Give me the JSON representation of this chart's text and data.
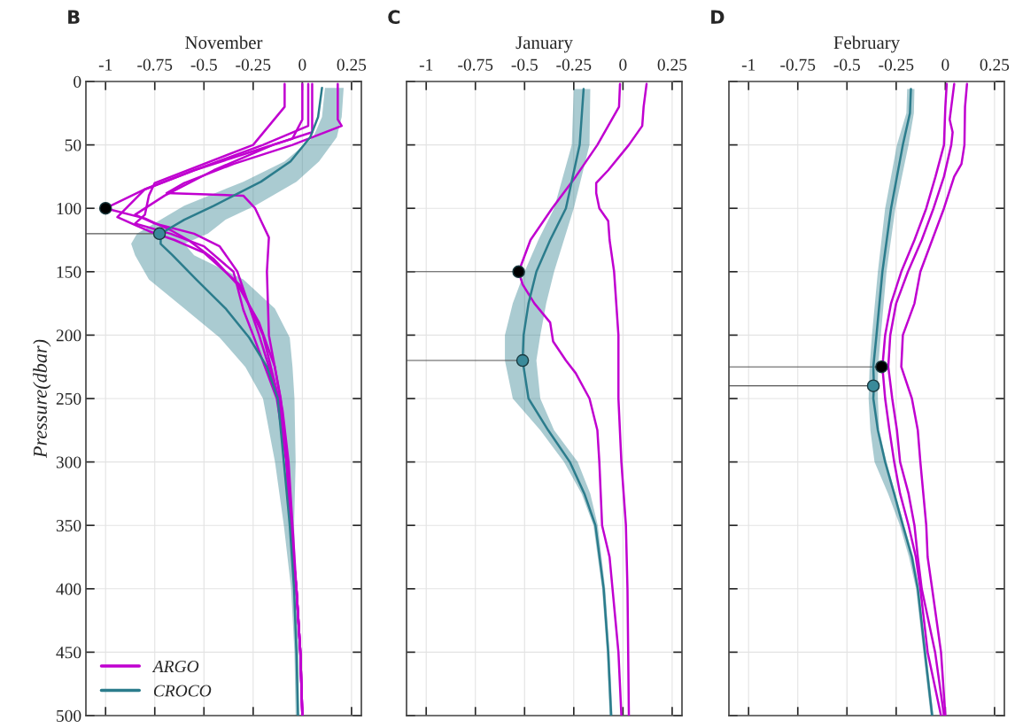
{
  "chart_data": [
    {
      "type": "line",
      "title": "November",
      "ylabel": "Pressure(dbar)",
      "annotations": [
        "B"
      ],
      "orientation": "horizontal",
      "xlim": [
        -1.1,
        0.3
      ],
      "xticks": [
        -1,
        -0.75,
        -0.5,
        -0.25,
        0,
        0.25
      ],
      "ylim": [
        500,
        0
      ],
      "yticks": [
        0,
        50,
        100,
        150,
        200,
        250,
        300,
        350,
        400,
        450,
        500
      ],
      "grid": true,
      "legend": "bottom left",
      "series": [
        {
          "name": "ARGO",
          "color": "#c000d0",
          "x": [
            2,
            30,
            45,
            55,
            70,
            85,
            100,
            108,
            118,
            125,
            140,
            160,
            190,
            225,
            260,
            300,
            350,
            400,
            450,
            500
          ],
          "values": [
            0.0,
            0.0,
            -0.05,
            -0.25,
            -0.55,
            -0.8,
            -1.0,
            -0.8,
            -0.66,
            -0.58,
            -0.45,
            -0.33,
            -0.22,
            -0.14,
            -0.1,
            -0.07,
            -0.05,
            -0.03,
            -0.01,
            0.0
          ]
        },
        {
          "color": "#c000d0",
          "x": [
            2,
            35,
            50,
            70,
            85,
            107,
            118,
            125,
            135,
            160,
            200,
            250,
            300,
            350,
            400,
            450,
            500
          ],
          "values": [
            0.03,
            0.03,
            -0.2,
            -0.55,
            -0.8,
            -0.94,
            -0.78,
            -0.65,
            -0.5,
            -0.32,
            -0.2,
            -0.12,
            -0.08,
            -0.06,
            -0.03,
            -0.01,
            0.0
          ]
        },
        {
          "color": "#c000d0",
          "x": [
            2,
            30,
            35,
            50,
            65,
            80,
            88,
            90,
            100,
            123,
            150,
            200,
            250,
            300,
            350,
            400,
            450,
            500
          ],
          "values": [
            0.18,
            0.18,
            0.2,
            -0.05,
            -0.35,
            -0.6,
            -0.69,
            -0.3,
            -0.24,
            -0.17,
            -0.18,
            -0.17,
            -0.11,
            -0.08,
            -0.06,
            -0.03,
            -0.01,
            0.0
          ]
        },
        {
          "color": "#c000d0",
          "x": [
            2,
            20,
            50,
            80,
            90,
            105,
            112,
            120,
            130,
            150,
            180,
            200,
            250,
            300,
            350,
            400,
            450,
            500
          ],
          "values": [
            -0.09,
            -0.09,
            -0.25,
            -0.75,
            -0.78,
            -0.8,
            -0.85,
            -0.67,
            -0.5,
            -0.35,
            -0.3,
            -0.25,
            -0.13,
            -0.08,
            -0.06,
            -0.03,
            -0.01,
            0.0
          ]
        },
        {
          "color": "#c000d0",
          "x": [
            2,
            40,
            50,
            70,
            90,
            105,
            112,
            120,
            130,
            150,
            200,
            250,
            300,
            350,
            400,
            450,
            500
          ],
          "values": [
            0.05,
            0.05,
            -0.15,
            -0.45,
            -0.7,
            -0.85,
            -0.75,
            -0.55,
            -0.42,
            -0.33,
            -0.22,
            -0.12,
            -0.08,
            -0.06,
            -0.03,
            -0.01,
            0.0
          ]
        },
        {
          "name": "CROCO",
          "color": "#2b7c8c",
          "x": [
            5,
            28,
            44,
            63,
            79,
            98,
            109,
            120,
            128,
            137,
            156,
            179,
            202,
            225,
            250,
            300,
            350,
            400,
            450,
            500
          ],
          "values": [
            0.1,
            0.08,
            0.04,
            -0.06,
            -0.21,
            -0.45,
            -0.6,
            -0.72,
            -0.72,
            -0.66,
            -0.54,
            -0.39,
            -0.27,
            -0.18,
            -0.125,
            -0.094,
            -0.064,
            -0.042,
            -0.03,
            -0.022
          ],
          "lower": [
            0.115,
            0.1,
            0.055,
            -0.09,
            -0.3,
            -0.6,
            -0.72,
            -0.84,
            -0.87,
            -0.85,
            -0.78,
            -0.6,
            -0.42,
            -0.29,
            -0.2,
            -0.139,
            -0.094,
            -0.057,
            -0.04,
            -0.034
          ],
          "upper": [
            0.21,
            0.2,
            0.175,
            0.085,
            -0.03,
            -0.24,
            -0.39,
            -0.48,
            -0.6,
            -0.55,
            -0.3,
            -0.14,
            -0.064,
            -0.05,
            -0.04,
            -0.034,
            -0.042,
            -0.03,
            -0.019,
            -0.017
          ]
        },
        {
          "type": "line",
          "color": "#555555",
          "x": [
            120,
            120
          ],
          "values": [
            -1.1,
            -0.726
          ]
        },
        {
          "type": "scatter",
          "marker": "circle",
          "color": "#000000",
          "x": [
            100
          ],
          "values": [
            -1.0
          ]
        },
        {
          "type": "scatter",
          "marker": "circle",
          "color": "#3a8a9a",
          "x": [
            120
          ],
          "values": [
            -0.726
          ]
        }
      ]
    },
    {
      "type": "line",
      "title": "January",
      "annotations": [
        "C"
      ],
      "orientation": "horizontal",
      "xlim": [
        -1.1,
        0.3
      ],
      "xticks": [
        -1,
        -0.75,
        -0.5,
        -0.25,
        0,
        0.25
      ],
      "ylim": [
        500,
        0
      ],
      "yticks": [
        0,
        50,
        100,
        150,
        200,
        250,
        300,
        350,
        400,
        450,
        500
      ],
      "grid": true,
      "tick_labels": "x",
      "series": [
        {
          "color": "#c000d0",
          "x": [
            2,
            20,
            50,
            75,
            100,
            125,
            150,
            160,
            175,
            190,
            205,
            220,
            230,
            250,
            275,
            300,
            350,
            375,
            400,
            425,
            450,
            500
          ],
          "values": [
            -0.015,
            -0.02,
            -0.13,
            -0.24,
            -0.36,
            -0.47,
            -0.53,
            -0.51,
            -0.45,
            -0.37,
            -0.355,
            -0.29,
            -0.24,
            -0.17,
            -0.13,
            -0.12,
            -0.106,
            -0.068,
            -0.053,
            -0.038,
            -0.023,
            -0.008
          ]
        },
        {
          "color": "#c000d0",
          "x": [
            2,
            20,
            35,
            50,
            70,
            80,
            88,
            100,
            110,
            125,
            150,
            200,
            250,
            300,
            350,
            400,
            500
          ],
          "values": [
            0.12,
            0.105,
            0.098,
            0.03,
            -0.075,
            -0.136,
            -0.136,
            -0.12,
            -0.075,
            -0.068,
            -0.045,
            -0.023,
            -0.023,
            -0.008,
            0.015,
            0.023,
            0.03
          ]
        },
        {
          "color": "#2b7c8c",
          "x": [
            6,
            50,
            100,
            125,
            150,
            175,
            200,
            220,
            250,
            275,
            300,
            325,
            350,
            400,
            450,
            500
          ],
          "values": [
            -0.2,
            -0.22,
            -0.29,
            -0.37,
            -0.44,
            -0.48,
            -0.505,
            -0.51,
            -0.48,
            -0.38,
            -0.27,
            -0.196,
            -0.14,
            -0.098,
            -0.075,
            -0.06
          ],
          "lower": [
            -0.25,
            -0.26,
            -0.35,
            -0.43,
            -0.5,
            -0.56,
            -0.6,
            -0.6,
            -0.56,
            -0.42,
            -0.3,
            -0.21,
            -0.15,
            -0.106,
            -0.082,
            -0.068
          ],
          "upper": [
            -0.166,
            -0.17,
            -0.25,
            -0.3,
            -0.35,
            -0.39,
            -0.42,
            -0.44,
            -0.42,
            -0.35,
            -0.23,
            -0.166,
            -0.128,
            -0.09,
            -0.068,
            -0.053
          ]
        },
        {
          "type": "line",
          "color": "#555555",
          "x": [
            150,
            150
          ],
          "values": [
            -1.1,
            -0.53
          ]
        },
        {
          "type": "line",
          "color": "#555555",
          "x": [
            220,
            220
          ],
          "values": [
            -1.1,
            -0.51
          ]
        },
        {
          "type": "scatter",
          "marker": "circle",
          "color": "#000000",
          "x": [
            150
          ],
          "values": [
            -0.53
          ]
        },
        {
          "type": "scatter",
          "marker": "circle",
          "color": "#3a8a9a",
          "x": [
            220
          ],
          "values": [
            -0.51
          ]
        }
      ]
    },
    {
      "type": "line",
      "title": "February",
      "annotations": [
        "D"
      ],
      "orientation": "horizontal",
      "xlim": [
        -1.1,
        0.3
      ],
      "xticks": [
        -1,
        -0.75,
        -0.5,
        -0.25,
        0,
        0.25
      ],
      "ylim": [
        500,
        0
      ],
      "yticks": [
        0,
        50,
        100,
        150,
        200,
        250,
        300,
        350,
        400,
        450,
        500
      ],
      "grid": true,
      "tick_labels": "x",
      "series": [
        {
          "color": "#c000d0",
          "x": [
            2,
            20,
            50,
            75,
            100,
            125,
            150,
            175,
            200,
            225,
            250,
            275,
            300,
            325,
            350,
            375,
            400,
            450,
            500
          ],
          "values": [
            0.007,
            0.0,
            -0.007,
            -0.05,
            -0.097,
            -0.157,
            -0.224,
            -0.276,
            -0.306,
            -0.32,
            -0.306,
            -0.284,
            -0.26,
            -0.23,
            -0.187,
            -0.15,
            -0.127,
            -0.09,
            -0.022
          ]
        },
        {
          "color": "#c000d0",
          "x": [
            2,
            30,
            40,
            50,
            75,
            100,
            125,
            150,
            175,
            200,
            225,
            250,
            275,
            300,
            325,
            350,
            375,
            400,
            450,
            500
          ],
          "values": [
            0.045,
            0.022,
            0.037,
            0.03,
            -0.007,
            -0.06,
            -0.12,
            -0.19,
            -0.25,
            -0.28,
            -0.29,
            -0.27,
            -0.246,
            -0.23,
            -0.187,
            -0.157,
            -0.14,
            -0.12,
            -0.052,
            -0.007
          ]
        },
        {
          "color": "#c000d0",
          "x": [
            2,
            20,
            50,
            65,
            75,
            100,
            125,
            150,
            175,
            200,
            225,
            250,
            275,
            300,
            325,
            350,
            375,
            400,
            450,
            500
          ],
          "values": [
            0.11,
            0.1,
            0.097,
            0.082,
            0.045,
            -0.007,
            -0.067,
            -0.127,
            -0.157,
            -0.216,
            -0.224,
            -0.17,
            -0.14,
            -0.127,
            -0.112,
            -0.097,
            -0.09,
            -0.067,
            -0.022,
            0.0
          ]
        },
        {
          "color": "#2b7c8c",
          "x": [
            6,
            25,
            50,
            100,
            150,
            200,
            225,
            240,
            250,
            275,
            300,
            325,
            350,
            375,
            400,
            450,
            500
          ],
          "values": [
            -0.175,
            -0.18,
            -0.216,
            -0.276,
            -0.32,
            -0.35,
            -0.366,
            -0.363,
            -0.366,
            -0.343,
            -0.306,
            -0.26,
            -0.216,
            -0.17,
            -0.14,
            -0.104,
            -0.067
          ],
          "lower": [
            -0.194,
            -0.198,
            -0.246,
            -0.306,
            -0.343,
            -0.373,
            -0.385,
            -0.388,
            -0.39,
            -0.381,
            -0.36,
            -0.291,
            -0.231,
            -0.185,
            -0.149,
            -0.112,
            -0.075
          ],
          "upper": [
            -0.157,
            -0.16,
            -0.187,
            -0.254,
            -0.299,
            -0.328,
            -0.342,
            -0.343,
            -0.343,
            -0.336,
            -0.299,
            -0.254,
            -0.209,
            -0.162,
            -0.134,
            -0.097,
            -0.06
          ]
        },
        {
          "type": "line",
          "color": "#555555",
          "x": [
            225,
            225
          ],
          "values": [
            -1.1,
            -0.324
          ]
        },
        {
          "type": "line",
          "color": "#555555",
          "x": [
            240,
            240
          ],
          "values": [
            -1.1,
            -0.366
          ]
        },
        {
          "type": "scatter",
          "marker": "circle",
          "color": "#000000",
          "x": [
            225
          ],
          "values": [
            -0.324
          ]
        },
        {
          "type": "scatter",
          "marker": "circle",
          "color": "#3a8a9a",
          "x": [
            240
          ],
          "values": [
            -0.366
          ]
        }
      ]
    }
  ]
}
